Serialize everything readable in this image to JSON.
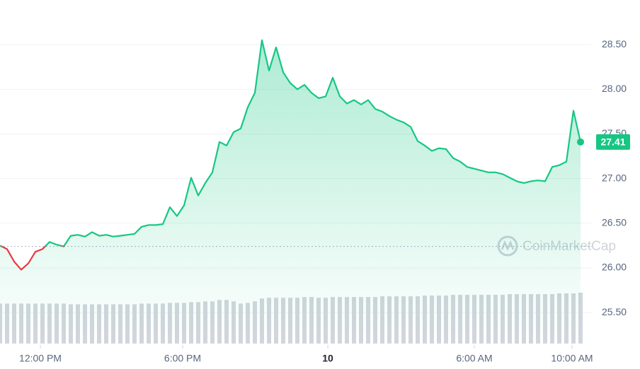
{
  "chart_data": {
    "type": "line",
    "values": [
      26.25,
      26.21,
      26.07,
      25.98,
      26.05,
      26.18,
      26.21,
      26.29,
      26.26,
      26.24,
      26.36,
      26.37,
      26.35,
      26.4,
      26.36,
      26.37,
      26.35,
      26.36,
      26.37,
      26.38,
      26.46,
      26.48,
      26.48,
      26.49,
      26.68,
      26.58,
      26.7,
      27.01,
      26.81,
      26.95,
      27.07,
      27.41,
      27.37,
      27.52,
      27.56,
      27.8,
      27.96,
      28.55,
      28.21,
      28.47,
      28.19,
      28.07,
      28.0,
      28.05,
      27.96,
      27.9,
      27.92,
      28.13,
      27.92,
      27.84,
      27.88,
      27.83,
      27.88,
      27.78,
      27.75,
      27.7,
      27.66,
      27.63,
      27.58,
      27.42,
      27.37,
      27.31,
      27.34,
      27.33,
      27.23,
      27.19,
      27.13,
      27.11,
      27.09,
      27.07,
      27.07,
      27.05,
      27.01,
      26.97,
      26.95,
      26.97,
      26.98,
      26.97,
      27.13,
      27.15,
      27.19,
      27.76,
      27.41
    ],
    "volume": [
      55,
      55,
      55,
      55,
      55,
      55,
      55,
      55,
      55,
      55,
      54,
      54,
      54,
      54,
      54,
      54,
      54,
      54,
      54,
      54,
      55,
      55,
      55,
      55,
      56,
      56,
      56,
      57,
      57,
      58,
      58,
      60,
      60,
      58,
      55,
      56,
      58,
      62,
      63,
      63,
      63,
      63,
      63,
      64,
      64,
      63,
      63,
      64,
      64,
      64,
      64,
      64,
      64,
      64,
      65,
      65,
      65,
      65,
      65,
      65,
      66,
      66,
      66,
      66,
      67,
      67,
      67,
      67,
      67,
      67,
      67,
      67,
      68,
      68,
      68,
      68,
      68,
      68,
      68,
      69,
      69,
      69,
      70
    ],
    "baseline": 26.24,
    "up_color": "#16c784",
    "down_color": "#ea3943",
    "volume_color": "#d1d6dc",
    "xlim": [
      0,
      82
    ],
    "xticks": [
      {
        "value": 5.7,
        "label": "12:00 PM"
      },
      {
        "value": 25.8,
        "label": "6:00 PM"
      },
      {
        "value": 46.3,
        "label": "10"
      },
      {
        "value": 67,
        "label": "6:00 AM"
      },
      {
        "value": 80.8,
        "label": "10:00 AM"
      }
    ],
    "ylim": [
      25.2,
      29.0
    ],
    "yticks": [
      {
        "value": 25.5,
        "label": "25.50"
      },
      {
        "value": 26,
        "label": "26.00"
      },
      {
        "value": 26.5,
        "label": "26.50"
      },
      {
        "value": 27,
        "label": "27.00"
      },
      {
        "value": 27.5,
        "label": "27.50"
      },
      {
        "value": 28,
        "label": "28.00"
      },
      {
        "value": 28.5,
        "label": "28.50"
      }
    ],
    "grid": true,
    "watermark": "CoinMarketCap"
  }
}
